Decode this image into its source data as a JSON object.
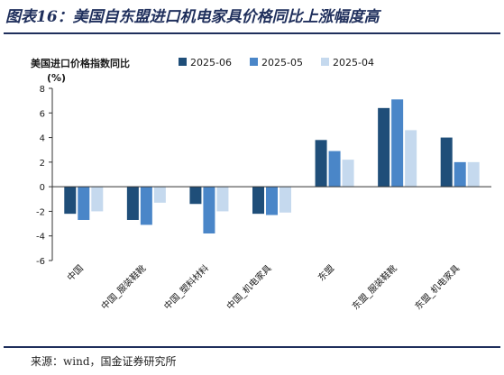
{
  "figure": {
    "title": "图表16：美国自东盟进口机电家具价格同比上涨幅度高",
    "source": "来源：wind，国金证券研究所"
  },
  "chart_data": {
    "type": "bar",
    "title": "美国进口价格指数同比",
    "ylabel": "(%)",
    "xlabel": "",
    "ylim": [
      -6,
      8
    ],
    "yticks": [
      -6,
      -4,
      -2,
      0,
      2,
      4,
      6,
      8
    ],
    "categories": [
      "中国",
      "中国_服装鞋靴",
      "中国_塑料材料",
      "中国_机电家具",
      "东盟",
      "东盟_服装鞋靴",
      "东盟_机电家具"
    ],
    "series": [
      {
        "name": "2025-06",
        "color": "#1f4e79",
        "values": [
          -2.2,
          -2.7,
          -1.4,
          -2.2,
          3.8,
          6.4,
          4.0
        ]
      },
      {
        "name": "2025-05",
        "color": "#4a86c8",
        "values": [
          -2.7,
          -3.1,
          -3.8,
          -2.3,
          2.9,
          7.1,
          2.0
        ]
      },
      {
        "name": "2025-04",
        "color": "#c5d9ee",
        "values": [
          -2.0,
          -1.3,
          -2.0,
          -2.1,
          2.2,
          4.6,
          2.0
        ]
      }
    ],
    "grid": false,
    "legend": "top"
  }
}
